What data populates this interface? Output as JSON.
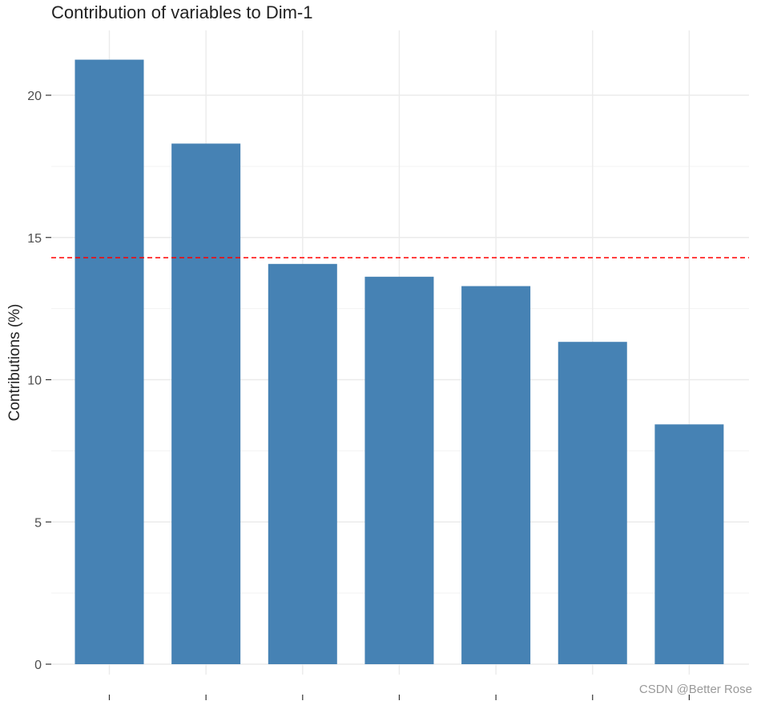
{
  "chart_data": {
    "type": "bar",
    "title": "Contribution of variables to Dim-1",
    "xlabel": "",
    "ylabel": "Contributions (%)",
    "categories": [
      "",
      "",
      "",
      "",
      "",
      "",
      ""
    ],
    "values": [
      21.25,
      18.3,
      14.07,
      13.62,
      13.29,
      11.33,
      8.43
    ],
    "ylim": [
      0,
      21.9
    ],
    "yticks": [
      0,
      5,
      10,
      15,
      20
    ],
    "reference_line": 14.29,
    "bar_color": "#4682B4",
    "reference_line_color": "#FF0000",
    "grid": true
  },
  "watermark": "CSDN @Better Rose"
}
